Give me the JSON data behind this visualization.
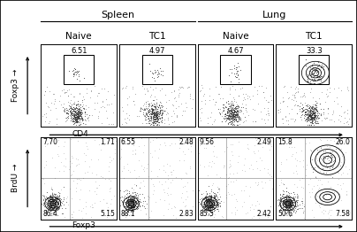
{
  "top_group_labels": [
    "Spleen",
    "Lung"
  ],
  "col_labels": [
    "Naive",
    "TC1",
    "Naive",
    "TC1"
  ],
  "top_row_numbers": [
    "6.51",
    "4.97",
    "4.67",
    "33.3"
  ],
  "bottom_row_numbers": [
    {
      "ul": "7.70",
      "ur": "1.71",
      "ll": "86.4",
      "lr": "5.15"
    },
    {
      "ul": "6.55",
      "ur": "2.48",
      "ll": "88.1",
      "lr": "2.83"
    },
    {
      "ul": "9.56",
      "ur": "2.49",
      "ll": "85.5",
      "lr": "2.42"
    },
    {
      "ul": "15.8",
      "ur": "26.0",
      "ll": "50.6",
      "lr": "7.58"
    }
  ],
  "ylabel_top": "Foxp3",
  "ylabel_bottom": "BrdU",
  "xlabel_top": "CD4",
  "xlabel_bottom": "Foxp3",
  "bg_color": "#ffffff",
  "border_color": "#000000",
  "text_color": "#000000",
  "dot_color": "#333333"
}
